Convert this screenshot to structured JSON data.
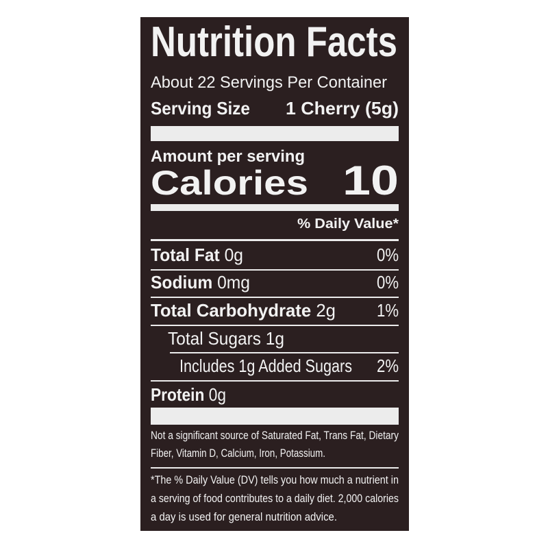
{
  "header": {
    "title": "Nutrition Facts",
    "servings": "About 22 Servings Per Container",
    "serving_size_label": "Serving Size",
    "serving_size": "1 Cherry (5g)"
  },
  "calories": {
    "amount_label": "Amount per serving",
    "label": "Calories",
    "value": 10
  },
  "daily_value_header": "% Daily Value*",
  "nutrients": [
    {
      "name": "Total Fat",
      "amount": "0g",
      "daily_value": "0%"
    },
    {
      "name": "Sodium",
      "amount": "0mg",
      "daily_value": "0%"
    },
    {
      "name": "Total Carbohydrate",
      "amount": "2g",
      "daily_value": "1%"
    },
    {
      "name": "Total Sugars",
      "amount": "1g"
    },
    {
      "name": "Includes 1g Added Sugars",
      "daily_value": "2%"
    },
    {
      "name": "Protein",
      "amount": "0g"
    }
  ],
  "footnotes": [
    [
      "Not a significant source of Saturated Fat, Trans Fat, Dietary",
      "Fiber, Vitamin D, Calcium, Iron, Potassium."
    ],
    [
      "*The % Daily Value (DV) tells you how much a nutrient in",
      "a serving of food contributes to a daily diet. 2,000 calories",
      "a day is used for general nutrition advice."
    ]
  ]
}
